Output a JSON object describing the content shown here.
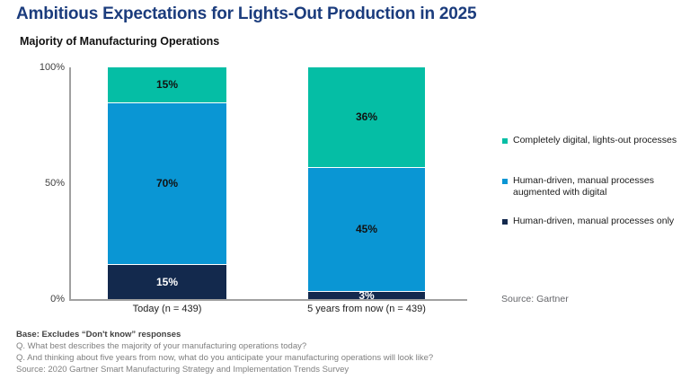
{
  "page": {
    "title": "Ambitious Expectations for Lights-Out Production in 2025",
    "subtitle": "Majority of Manufacturing Operations",
    "source_label": "Source: Gartner"
  },
  "chart_data": {
    "type": "bar",
    "variant": "stacked-column",
    "title": "Majority of Manufacturing Operations",
    "categories": [
      "Today (n = 439)",
      "5 years from now (n = 439)"
    ],
    "series": [
      {
        "name": "Completely digital, lights-out processes",
        "color": "#05BEA5",
        "label_color": "#111111",
        "values": [
          15,
          36
        ]
      },
      {
        "name": "Human-driven, manual processes augmented with digital",
        "color": "#0A96D4",
        "label_color": "#111111",
        "values": [
          70,
          45
        ]
      },
      {
        "name": "Human-driven, manual processes only",
        "color": "#13294D",
        "label_color": "#FFFFFF",
        "values": [
          15,
          3
        ]
      }
    ],
    "value_suffix": "%",
    "ylim": [
      0,
      100
    ],
    "y_ticks": [
      {
        "label": "100%",
        "value": 100
      },
      {
        "label": "50%",
        "value": 50
      },
      {
        "label": "0%",
        "value": 0
      }
    ],
    "grid": false,
    "legend_position": "right",
    "segment_rendering": "heights normalized to each bar's total"
  },
  "legend": {
    "items": [
      {
        "color": "#05BEA5",
        "lines": [
          "Completely digital, lights-out processes"
        ]
      },
      {
        "color": "#0A96D4",
        "lines": [
          "Human-driven, manual processes",
          "augmented with digital"
        ]
      },
      {
        "color": "#13294D",
        "lines": [
          "Human-driven, manual processes only"
        ]
      }
    ]
  },
  "footnotes": {
    "base": "Base: Excludes “Don't know” responses",
    "lines": [
      "Q. What best describes the majority of your manufacturing operations today?",
      "Q. And thinking about five years from now, what do you anticipate your manufacturing operations will look like?",
      "Source: 2020 Gartner Smart Manufacturing Strategy and Implementation Trends Survey"
    ]
  }
}
